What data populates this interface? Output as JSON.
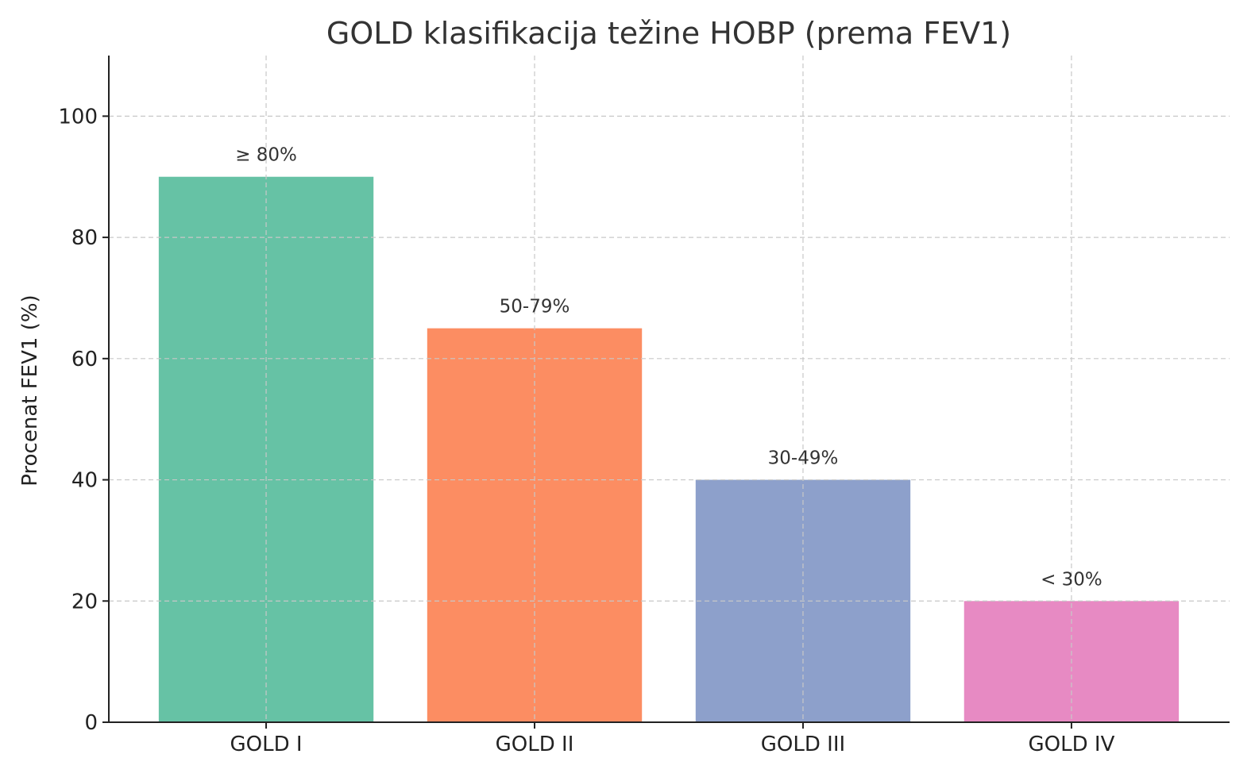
{
  "chart_data": {
    "type": "bar",
    "title": "GOLD klasifikacija težine HOBP (prema FEV1)",
    "xlabel": "",
    "ylabel": "Procenat FEV1 (%)",
    "categories": [
      "GOLD I",
      "GOLD II",
      "GOLD III",
      "GOLD IV"
    ],
    "values": [
      90,
      65,
      40,
      20
    ],
    "data_labels": [
      "≥ 80%",
      "50-79%",
      "30-49%",
      "< 30%"
    ],
    "colors": [
      "#66c2a5",
      "#fc8d62",
      "#8da0cb",
      "#e78ac3"
    ],
    "ylim": [
      0,
      110
    ],
    "yticks": [
      0,
      20,
      40,
      60,
      80,
      100
    ],
    "grid": true
  }
}
